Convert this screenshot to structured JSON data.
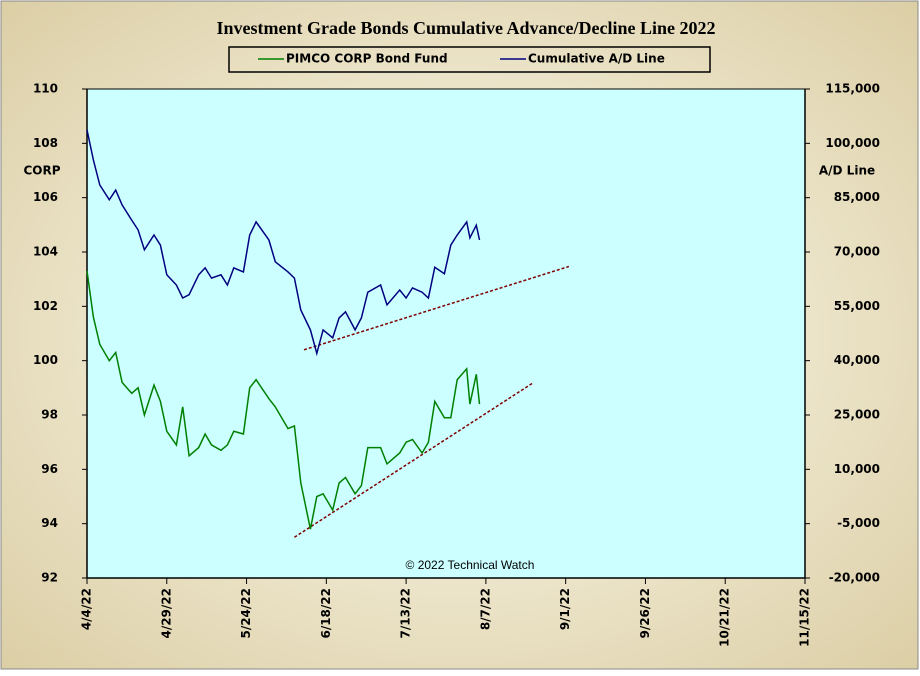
{
  "chart_data": {
    "type": "line",
    "title": "Investment  Grade Bonds Cumulative  Advance/Decline  Line 2022",
    "y_label": "CORP",
    "y2_label": "A/D Line",
    "annotation": "© 2022 Technical  Watch",
    "x": [
      "4/4/22",
      "4/6/22",
      "4/8/22",
      "4/11/22",
      "4/13/22",
      "4/15/22",
      "4/18/22",
      "4/20/22",
      "4/22/22",
      "4/25/22",
      "4/27/22",
      "4/29/22",
      "5/2/22",
      "5/4/22",
      "5/6/22",
      "5/9/22",
      "5/11/22",
      "5/13/22",
      "5/16/22",
      "5/18/22",
      "5/20/22",
      "5/23/22",
      "5/25/22",
      "5/27/22",
      "5/31/22",
      "6/2/22",
      "6/6/22",
      "6/8/22",
      "6/10/22",
      "6/13/22",
      "6/15/22",
      "6/17/22",
      "6/20/22",
      "6/22/22",
      "6/24/22",
      "6/27/22",
      "6/29/22",
      "7/1/22",
      "7/5/22",
      "7/7/22",
      "7/11/22",
      "7/13/22",
      "7/15/22",
      "7/18/22",
      "7/20/22",
      "7/22/22",
      "7/25/22",
      "7/27/22",
      "7/29/22",
      "8/1/22",
      "8/2/22",
      "8/4/22",
      "8/5/22"
    ],
    "series": [
      {
        "name": "PIMCO CORP Bond Fund",
        "color": "#008000",
        "axis": "y",
        "values": [
          103.3,
          101.6,
          100.6,
          100.0,
          100.3,
          99.2,
          98.8,
          99.0,
          98.0,
          99.1,
          98.5,
          97.4,
          96.9,
          98.3,
          96.5,
          96.8,
          97.3,
          96.9,
          96.7,
          96.9,
          97.4,
          97.3,
          99.0,
          99.3,
          98.6,
          98.3,
          97.5,
          97.6,
          95.5,
          93.8,
          95.0,
          95.1,
          94.5,
          95.5,
          95.7,
          95.1,
          95.4,
          96.8,
          96.8,
          96.2,
          96.6,
          97.0,
          97.1,
          96.6,
          97.0,
          98.5,
          97.9,
          97.9,
          99.3,
          99.7,
          98.4,
          99.5,
          98.4
        ]
      },
      {
        "name": "Cumulative A/D Line",
        "color": "#000080",
        "axis": "y2",
        "values": [
          103700,
          95400,
          88500,
          84400,
          87100,
          83000,
          78800,
          76100,
          70600,
          74700,
          71900,
          63700,
          60900,
          57300,
          58200,
          63700,
          65600,
          62800,
          63700,
          60900,
          65600,
          64500,
          74700,
          78300,
          73300,
          67300,
          64500,
          62800,
          54000,
          48500,
          42000,
          48500,
          46300,
          51800,
          53500,
          48500,
          51800,
          58900,
          60900,
          55400,
          59500,
          57300,
          60100,
          58900,
          57300,
          65800,
          64000,
          71900,
          74700,
          78300,
          73900,
          77400,
          73300
        ]
      }
    ],
    "trendlines": [
      {
        "axis": "y2",
        "color": "#800000",
        "x": [
          "6/11/22",
          "9/2/22"
        ],
        "values": [
          43000,
          66000
        ]
      },
      {
        "axis": "y",
        "color": "#800000",
        "x": [
          "6/8/22",
          "8/22/22"
        ],
        "values": [
          93.5,
          99.2
        ]
      }
    ],
    "xlim": [
      "4/4/22",
      "11/15/22"
    ],
    "xticks": [
      "4/4/22",
      "4/29/22",
      "5/24/22",
      "6/18/22",
      "7/13/22",
      "8/7/22",
      "9/1/22",
      "9/26/22",
      "10/21/22",
      "11/15/22"
    ],
    "ylim": [
      92,
      110
    ],
    "yticks": [
      92,
      94,
      96,
      98,
      100,
      102,
      104,
      106,
      108,
      110
    ],
    "y2lim": [
      -20000,
      115000
    ],
    "y2ticks": [
      {
        "value": -20000,
        "label": "-20,000"
      },
      {
        "value": -5000,
        "label": "-5,000"
      },
      {
        "value": 10000,
        "label": "10,000"
      },
      {
        "value": 25000,
        "label": "25,000"
      },
      {
        "value": 40000,
        "label": "40,000"
      },
      {
        "value": 55000,
        "label": "55,000"
      },
      {
        "value": 70000,
        "label": "70,000"
      },
      {
        "value": 85000,
        "label": "85,000"
      },
      {
        "value": 100000,
        "label": "100,000"
      },
      {
        "value": 115000,
        "label": "115,000"
      }
    ],
    "plot_background": "#ccffff",
    "grid": false,
    "legend_position": "top"
  }
}
